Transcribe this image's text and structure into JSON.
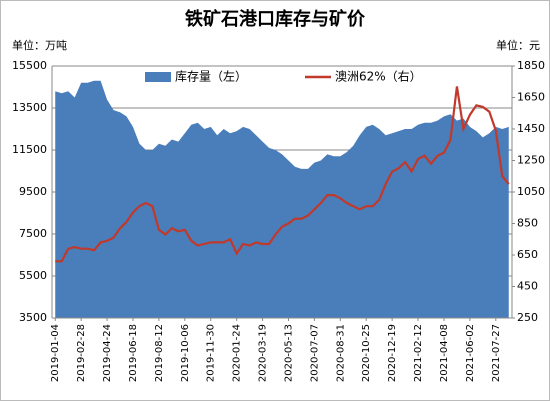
{
  "chart_data": {
    "type": "area-line",
    "title": "铁矿石港口库存与矿价",
    "y_unit": "单位：万吨",
    "y2_unit": "单位：元",
    "categories": [
      "2019-01-04",
      null,
      null,
      null,
      "2019-02-28",
      null,
      null,
      null,
      "2019-04-24",
      null,
      null,
      null,
      "2019-06-18",
      null,
      null,
      null,
      "2019-08-12",
      null,
      null,
      null,
      "2019-10-06",
      null,
      null,
      null,
      "2019-11-30",
      null,
      null,
      null,
      "2020-01-24",
      null,
      null,
      null,
      "2020-03-19",
      null,
      null,
      null,
      "2020-05-13",
      null,
      null,
      null,
      "2020-07-07",
      null,
      null,
      null,
      "2020-08-31",
      null,
      null,
      null,
      "2020-10-25",
      null,
      null,
      null,
      "2020-12-19",
      null,
      null,
      null,
      "2021-02-12",
      null,
      null,
      null,
      "2021-04-08",
      null,
      null,
      null,
      "2021-06-02",
      null,
      null,
      null,
      "2021-07-27",
      null,
      null
    ],
    "series": [
      {
        "name": "库存量（左）",
        "color": "#4a7ebb",
        "kind": "area",
        "axis": "y",
        "values": [
          14300,
          14200,
          14300,
          14000,
          14700,
          14700,
          14800,
          14800,
          13900,
          13400,
          13300,
          13100,
          12600,
          11800,
          11500,
          11500,
          11800,
          11700,
          12000,
          11900,
          12300,
          12700,
          12800,
          12500,
          12600,
          12200,
          12500,
          12300,
          12400,
          12600,
          12500,
          12200,
          11900,
          11600,
          11500,
          11300,
          11000,
          10700,
          10600,
          10600,
          10900,
          11000,
          11300,
          11200,
          11200,
          11400,
          11700,
          12200,
          12600,
          12700,
          12500,
          12200,
          12300,
          12400,
          12500,
          12500,
          12700,
          12800,
          12800,
          12900,
          13100,
          13200,
          12900,
          13000,
          12600,
          12400,
          12100,
          12300,
          12600,
          12500,
          12600
        ]
      },
      {
        "name": "澳洲62%（右）",
        "color": "#c0392b",
        "kind": "line",
        "axis": "y2",
        "values": [
          610,
          610,
          690,
          700,
          690,
          690,
          680,
          730,
          740,
          760,
          820,
          860,
          920,
          960,
          980,
          960,
          810,
          780,
          820,
          800,
          810,
          740,
          710,
          720,
          730,
          730,
          730,
          750,
          660,
          720,
          710,
          730,
          720,
          720,
          780,
          830,
          850,
          880,
          880,
          900,
          940,
          980,
          1030,
          1030,
          1010,
          980,
          960,
          940,
          960,
          960,
          1000,
          1100,
          1180,
          1200,
          1240,
          1180,
          1260,
          1280,
          1230,
          1280,
          1300,
          1380,
          1720,
          1450,
          1540,
          1600,
          1590,
          1560,
          1440,
          1150,
          1100
        ]
      }
    ],
    "ylim": [
      3500,
      15500
    ],
    "yticks": [
      3500,
      5500,
      7500,
      9500,
      11500,
      13500,
      15500
    ],
    "y2lim": [
      250,
      1850
    ],
    "y2ticks": [
      250,
      450,
      650,
      850,
      1050,
      1250,
      1450,
      1650,
      1850
    ],
    "grid": true,
    "legend": "top"
  }
}
